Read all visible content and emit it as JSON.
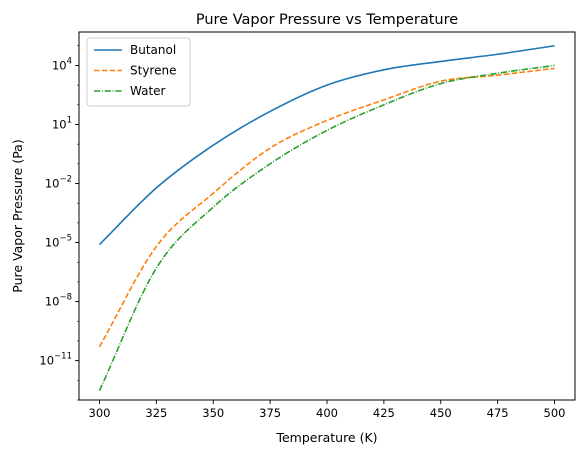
{
  "chart_data": {
    "type": "line",
    "title": "Pure Vapor Pressure vs Temperature",
    "xlabel": "Temperature (K)",
    "ylabel": "Pure Vapor Pressure (Pa)",
    "xlim": [
      291,
      509
    ],
    "ylim": [
      1e-13,
      500000
    ],
    "yscale": "log",
    "grid": false,
    "legend": "top-left",
    "x_ticks": [
      300,
      325,
      350,
      375,
      400,
      425,
      450,
      475,
      500
    ],
    "y_ticks": [
      {
        "value": 1e-11,
        "base": "10",
        "exp": "−11"
      },
      {
        "value": 1e-08,
        "base": "10",
        "exp": "−8"
      },
      {
        "value": 1e-05,
        "base": "10",
        "exp": "−5"
      },
      {
        "value": 0.01,
        "base": "10",
        "exp": "−2"
      },
      {
        "value": 10,
        "base": "10",
        "exp": "1"
      },
      {
        "value": 10000,
        "base": "10",
        "exp": "4"
      }
    ],
    "x": [
      300,
      325,
      350,
      375,
      400,
      425,
      450,
      475,
      500
    ],
    "series": [
      {
        "name": "Butanol",
        "color": "#1f77b4",
        "dash": "solid",
        "values": [
          7.9e-06,
          0.006,
          0.89,
          46,
          1000,
          6000,
          16000,
          37000,
          100000
        ]
      },
      {
        "name": "Styrene",
        "color": "#ff7f0e",
        "dash": "dashed",
        "values": [
          5e-11,
          6.3e-06,
          0.0032,
          0.63,
          16,
          178,
          1580,
          3200,
          7100
        ]
      },
      {
        "name": "Water",
        "color": "#2ca02c",
        "dash": "dashdot",
        "values": [
          3e-13,
          5e-07,
          0.00063,
          0.1,
          5.0,
          100,
          1200,
          4000,
          10000
        ]
      }
    ]
  }
}
